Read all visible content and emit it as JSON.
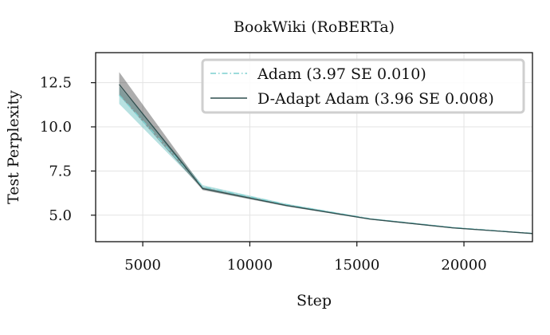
{
  "chart_data": {
    "type": "line",
    "title": "BookWiki (RoBERTa)",
    "xlabel": "Step",
    "ylabel": "Test Perplexity",
    "xlim": [
      2800,
      23200
    ],
    "ylim": [
      3.5,
      14.2
    ],
    "xticks": [
      5000,
      10000,
      15000,
      20000
    ],
    "xtick_labels": [
      "5000",
      "10000",
      "15000",
      "20000"
    ],
    "yticks": [
      5.0,
      7.5,
      10.0,
      12.5
    ],
    "ytick_labels": [
      "5.0",
      "7.5",
      "10.0",
      "12.5"
    ],
    "grid": true,
    "legend_position": "top-right",
    "series": [
      {
        "name": "Adam (3.97 SE 0.010)",
        "color": "#7ccfcf",
        "band_color": "#5fbcbc",
        "line_style": "dashdot",
        "x": [
          3900,
          7800,
          11700,
          15600,
          19500,
          23200
        ],
        "y": [
          11.8,
          6.6,
          5.6,
          4.8,
          4.3,
          3.97
        ],
        "lower": [
          11.3,
          6.5,
          5.55,
          4.77,
          4.27,
          3.95
        ],
        "upper": [
          12.3,
          6.7,
          5.65,
          4.83,
          4.33,
          3.99
        ]
      },
      {
        "name": "D-Adapt Adam (3.96 SE 0.008)",
        "color": "#2f4f4f",
        "band_color": "#333333",
        "line_style": "solid",
        "x": [
          3900,
          7800,
          11700,
          15600,
          19500,
          23200
        ],
        "y": [
          12.4,
          6.5,
          5.55,
          4.78,
          4.28,
          3.96
        ],
        "lower": [
          11.8,
          6.42,
          5.5,
          4.75,
          4.25,
          3.94
        ],
        "upper": [
          13.1,
          6.58,
          5.6,
          4.81,
          4.31,
          3.98
        ]
      }
    ]
  }
}
